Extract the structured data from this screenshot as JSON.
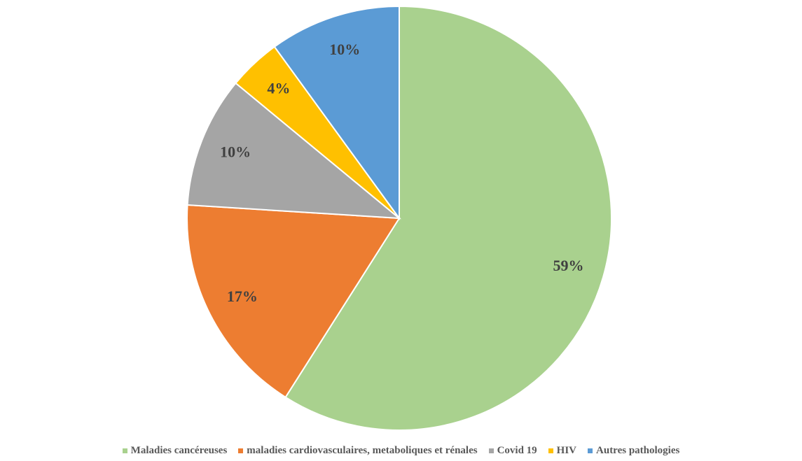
{
  "chart_data": {
    "type": "pie",
    "categories": [
      "Maladies cancéreuses",
      "maladies cardiovasculaires, metaboliques et rénales",
      "Covid 19",
      "HIV",
      "Autres pathologies"
    ],
    "values": [
      59,
      17,
      10,
      4,
      10
    ],
    "labels": [
      "59%",
      "17%",
      "10%",
      "4%",
      "10%"
    ],
    "colors": [
      "#A9D18E",
      "#ED7D31",
      "#A5A5A5",
      "#FFC000",
      "#5B9BD5"
    ],
    "start": "12 o'clock",
    "direction": "clockwise",
    "legend_position": "bottom"
  }
}
